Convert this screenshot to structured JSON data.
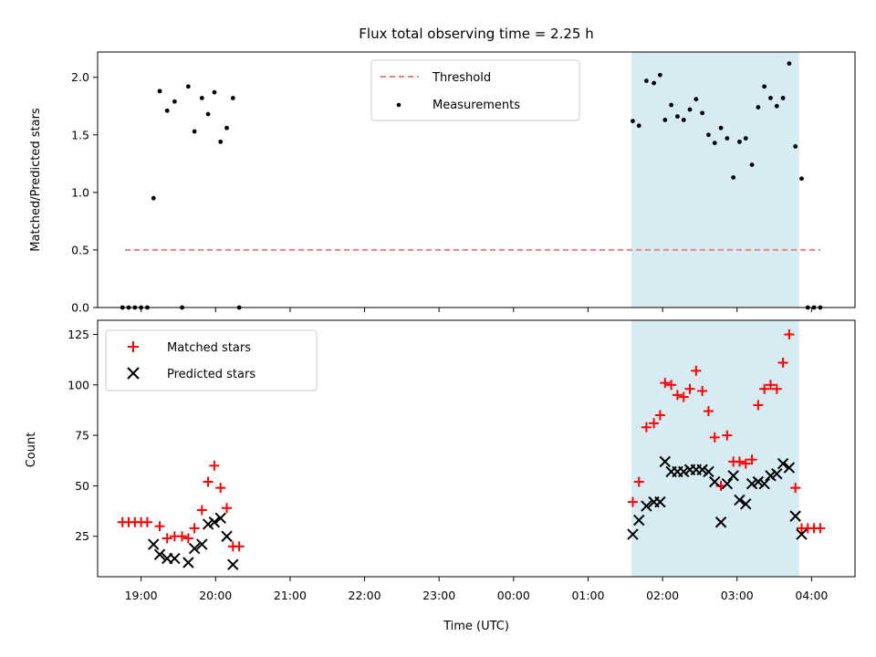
{
  "title": "Flux total observing time = 2.25 h",
  "top_panel": {
    "ylabel": "Matched/Predicted stars",
    "ylim": [
      0,
      2.22
    ],
    "yticks": [
      "0.0",
      "0.5",
      "1.0",
      "1.5",
      "2.0"
    ],
    "legend": {
      "threshold_label": "Threshold",
      "measurements_label": "Measurements",
      "placement": "upper-center"
    }
  },
  "bottom_panel": {
    "ylabel": "Count",
    "ylim": [
      5,
      132
    ],
    "yticks": [
      "25",
      "50",
      "75",
      "100",
      "125"
    ],
    "legend": {
      "matched_label": "Matched stars",
      "predicted_label": "Predicted stars",
      "placement": "upper-left"
    }
  },
  "xlabel": "Time (UTC)",
  "xticks": [
    "19:00",
    "20:00",
    "21:00",
    "22:00",
    "23:00",
    "00:00",
    "01:00",
    "02:00",
    "03:00",
    "04:00"
  ],
  "colors": {
    "threshold": "#f08080",
    "measurements": "#000000",
    "matched": "#ff0000",
    "predicted": "#000000",
    "window": "#add8e6"
  },
  "chart_data": [
    {
      "type": "scatter",
      "title": "Flux total observing time = 2.25 h",
      "xlabel": "",
      "ylabel": "Matched/Predicted stars",
      "x_range": [
        "18:25",
        "04:35"
      ],
      "ylim": [
        0,
        2.22
      ],
      "threshold": {
        "name": "Threshold",
        "value": 0.5,
        "x_start": "18:47",
        "x_end": "04:07"
      },
      "observing_window": {
        "start": "01:35",
        "end": "03:50"
      },
      "series": [
        {
          "name": "Measurements",
          "points": [
            [
              "18:45",
              0.0
            ],
            [
              "18:50",
              0.0
            ],
            [
              "18:55",
              0.0
            ],
            [
              "19:00",
              0.0
            ],
            [
              "19:05",
              0.0
            ],
            [
              "19:10",
              0.95
            ],
            [
              "19:15",
              1.88
            ],
            [
              "19:21",
              1.71
            ],
            [
              "19:27",
              1.79
            ],
            [
              "19:33",
              0.0
            ],
            [
              "19:38",
              1.92
            ],
            [
              "19:43",
              1.53
            ],
            [
              "19:49",
              1.82
            ],
            [
              "19:54",
              1.68
            ],
            [
              "19:59",
              1.87
            ],
            [
              "20:04",
              1.44
            ],
            [
              "20:09",
              1.56
            ],
            [
              "20:14",
              1.82
            ],
            [
              "20:19",
              0.0
            ],
            [
              "01:36",
              1.62
            ],
            [
              "01:41",
              1.58
            ],
            [
              "01:47",
              1.97
            ],
            [
              "01:53",
              1.95
            ],
            [
              "01:58",
              2.02
            ],
            [
              "02:02",
              1.63
            ],
            [
              "02:07",
              1.76
            ],
            [
              "02:12",
              1.66
            ],
            [
              "02:17",
              1.63
            ],
            [
              "02:22",
              1.72
            ],
            [
              "02:27",
              1.81
            ],
            [
              "02:32",
              1.69
            ],
            [
              "02:37",
              1.5
            ],
            [
              "02:42",
              1.43
            ],
            [
              "02:47",
              1.56
            ],
            [
              "02:52",
              1.47
            ],
            [
              "02:57",
              1.13
            ],
            [
              "03:02",
              1.44
            ],
            [
              "03:07",
              1.47
            ],
            [
              "03:12",
              1.24
            ],
            [
              "03:17",
              1.74
            ],
            [
              "03:22",
              1.92
            ],
            [
              "03:27",
              1.82
            ],
            [
              "03:32",
              1.75
            ],
            [
              "03:37",
              1.82
            ],
            [
              "03:42",
              2.12
            ],
            [
              "03:47",
              1.4
            ],
            [
              "03:52",
              1.12
            ],
            [
              "03:57",
              0.0
            ],
            [
              "04:02",
              0.0
            ],
            [
              "04:07",
              0.0
            ]
          ]
        }
      ]
    },
    {
      "type": "scatter",
      "title": "",
      "xlabel": "Time (UTC)",
      "ylabel": "Count",
      "x_range": [
        "18:25",
        "04:35"
      ],
      "ylim": [
        5,
        132
      ],
      "observing_window": {
        "start": "01:35",
        "end": "03:50"
      },
      "series": [
        {
          "name": "Matched stars",
          "points": [
            [
              "18:45",
              32
            ],
            [
              "18:50",
              32
            ],
            [
              "18:55",
              32
            ],
            [
              "19:00",
              32
            ],
            [
              "19:05",
              32
            ],
            [
              "19:15",
              30
            ],
            [
              "19:21",
              24
            ],
            [
              "19:27",
              25
            ],
            [
              "19:33",
              25
            ],
            [
              "19:38",
              24
            ],
            [
              "19:43",
              29
            ],
            [
              "19:49",
              38
            ],
            [
              "19:54",
              52
            ],
            [
              "19:59",
              60
            ],
            [
              "20:04",
              49
            ],
            [
              "20:09",
              39
            ],
            [
              "20:14",
              20
            ],
            [
              "20:19",
              20
            ],
            [
              "01:36",
              42
            ],
            [
              "01:41",
              52
            ],
            [
              "01:47",
              79
            ],
            [
              "01:53",
              81
            ],
            [
              "01:58",
              85
            ],
            [
              "02:02",
              101
            ],
            [
              "02:07",
              100
            ],
            [
              "02:12",
              95
            ],
            [
              "02:17",
              94
            ],
            [
              "02:22",
              98
            ],
            [
              "02:27",
              107
            ],
            [
              "02:32",
              97
            ],
            [
              "02:37",
              87
            ],
            [
              "02:42",
              74
            ],
            [
              "02:47",
              50
            ],
            [
              "02:52",
              75
            ],
            [
              "02:57",
              62
            ],
            [
              "03:02",
              62
            ],
            [
              "03:07",
              61
            ],
            [
              "03:12",
              63
            ],
            [
              "03:17",
              90
            ],
            [
              "03:22",
              98
            ],
            [
              "03:27",
              100
            ],
            [
              "03:32",
              98
            ],
            [
              "03:37",
              111
            ],
            [
              "03:42",
              125
            ],
            [
              "03:47",
              49
            ],
            [
              "03:52",
              29
            ],
            [
              "03:57",
              29
            ],
            [
              "04:02",
              29
            ],
            [
              "04:07",
              29
            ]
          ]
        },
        {
          "name": "Predicted stars",
          "points": [
            [
              "19:10",
              21
            ],
            [
              "19:15",
              16
            ],
            [
              "19:21",
              14
            ],
            [
              "19:27",
              14
            ],
            [
              "19:38",
              12
            ],
            [
              "19:43",
              19
            ],
            [
              "19:49",
              21
            ],
            [
              "19:54",
              31
            ],
            [
              "19:59",
              32
            ],
            [
              "20:04",
              34
            ],
            [
              "20:09",
              25
            ],
            [
              "20:14",
              11
            ],
            [
              "01:36",
              26
            ],
            [
              "01:41",
              33
            ],
            [
              "01:47",
              40
            ],
            [
              "01:53",
              42
            ],
            [
              "01:58",
              42
            ],
            [
              "02:02",
              62
            ],
            [
              "02:07",
              57
            ],
            [
              "02:12",
              57
            ],
            [
              "02:17",
              57
            ],
            [
              "02:22",
              58
            ],
            [
              "02:27",
              58
            ],
            [
              "02:32",
              58
            ],
            [
              "02:37",
              57
            ],
            [
              "02:42",
              52
            ],
            [
              "02:47",
              32
            ],
            [
              "02:52",
              51
            ],
            [
              "02:57",
              55
            ],
            [
              "03:02",
              43
            ],
            [
              "03:07",
              41
            ],
            [
              "03:12",
              51
            ],
            [
              "03:17",
              52
            ],
            [
              "03:22",
              51
            ],
            [
              "03:27",
              55
            ],
            [
              "03:32",
              56
            ],
            [
              "03:37",
              61
            ],
            [
              "03:42",
              59
            ],
            [
              "03:47",
              35
            ],
            [
              "03:52",
              26
            ]
          ]
        }
      ]
    }
  ]
}
